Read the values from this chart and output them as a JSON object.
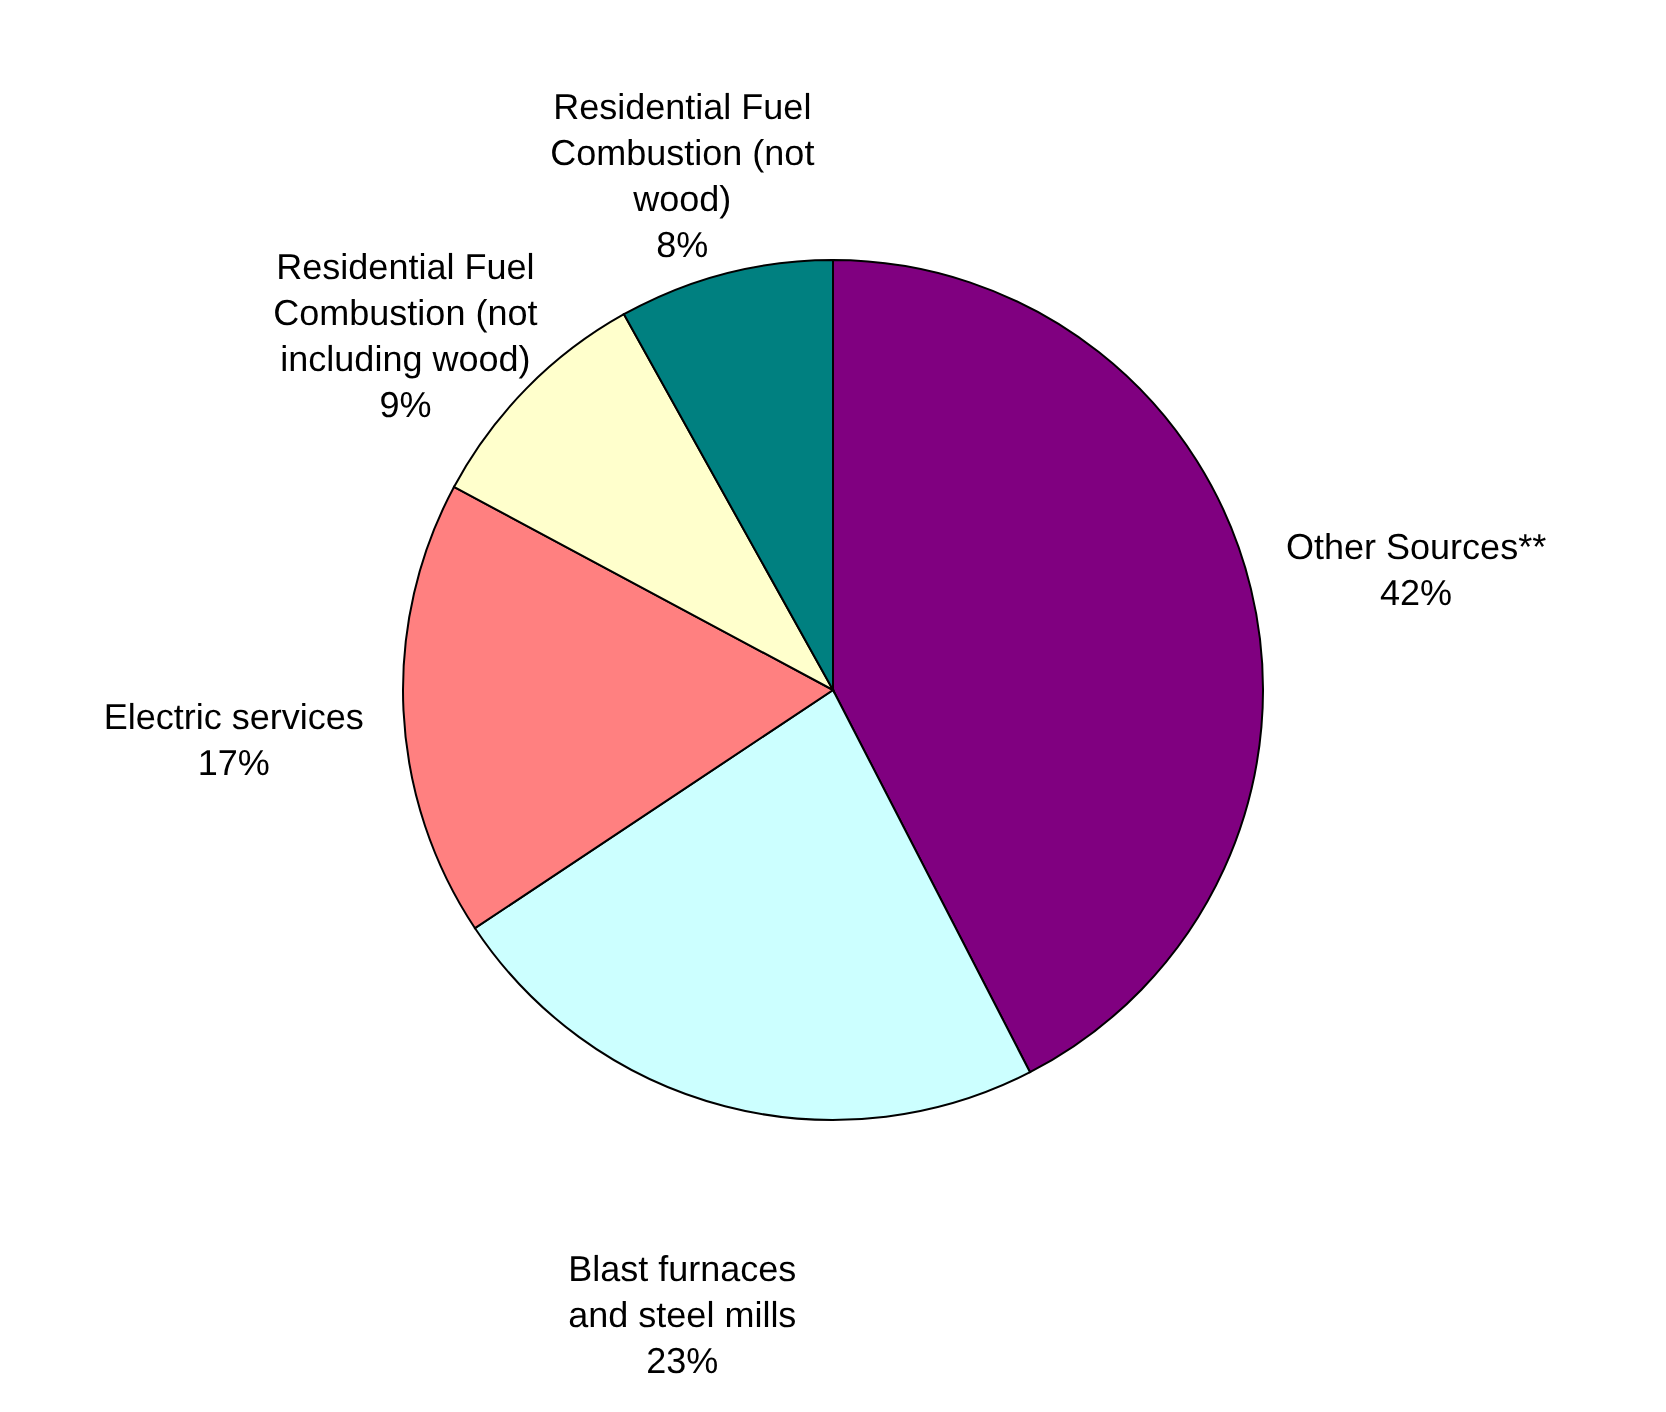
{
  "chart_data": {
    "type": "pie",
    "categories": [
      "Other Sources**",
      "Blast furnaces and steel mills",
      "Electric services",
      "Residential Fuel Combustion (not including wood)",
      "Residential Fuel Combustion (not wood)"
    ],
    "values": [
      42,
      23,
      17,
      9,
      8
    ],
    "value_labels": [
      "42%",
      "23%",
      "17%",
      "9%",
      "8%"
    ],
    "colors": [
      "#800080",
      "#ccffff",
      "#ff8080",
      "#ffffcc",
      "#008080"
    ]
  }
}
